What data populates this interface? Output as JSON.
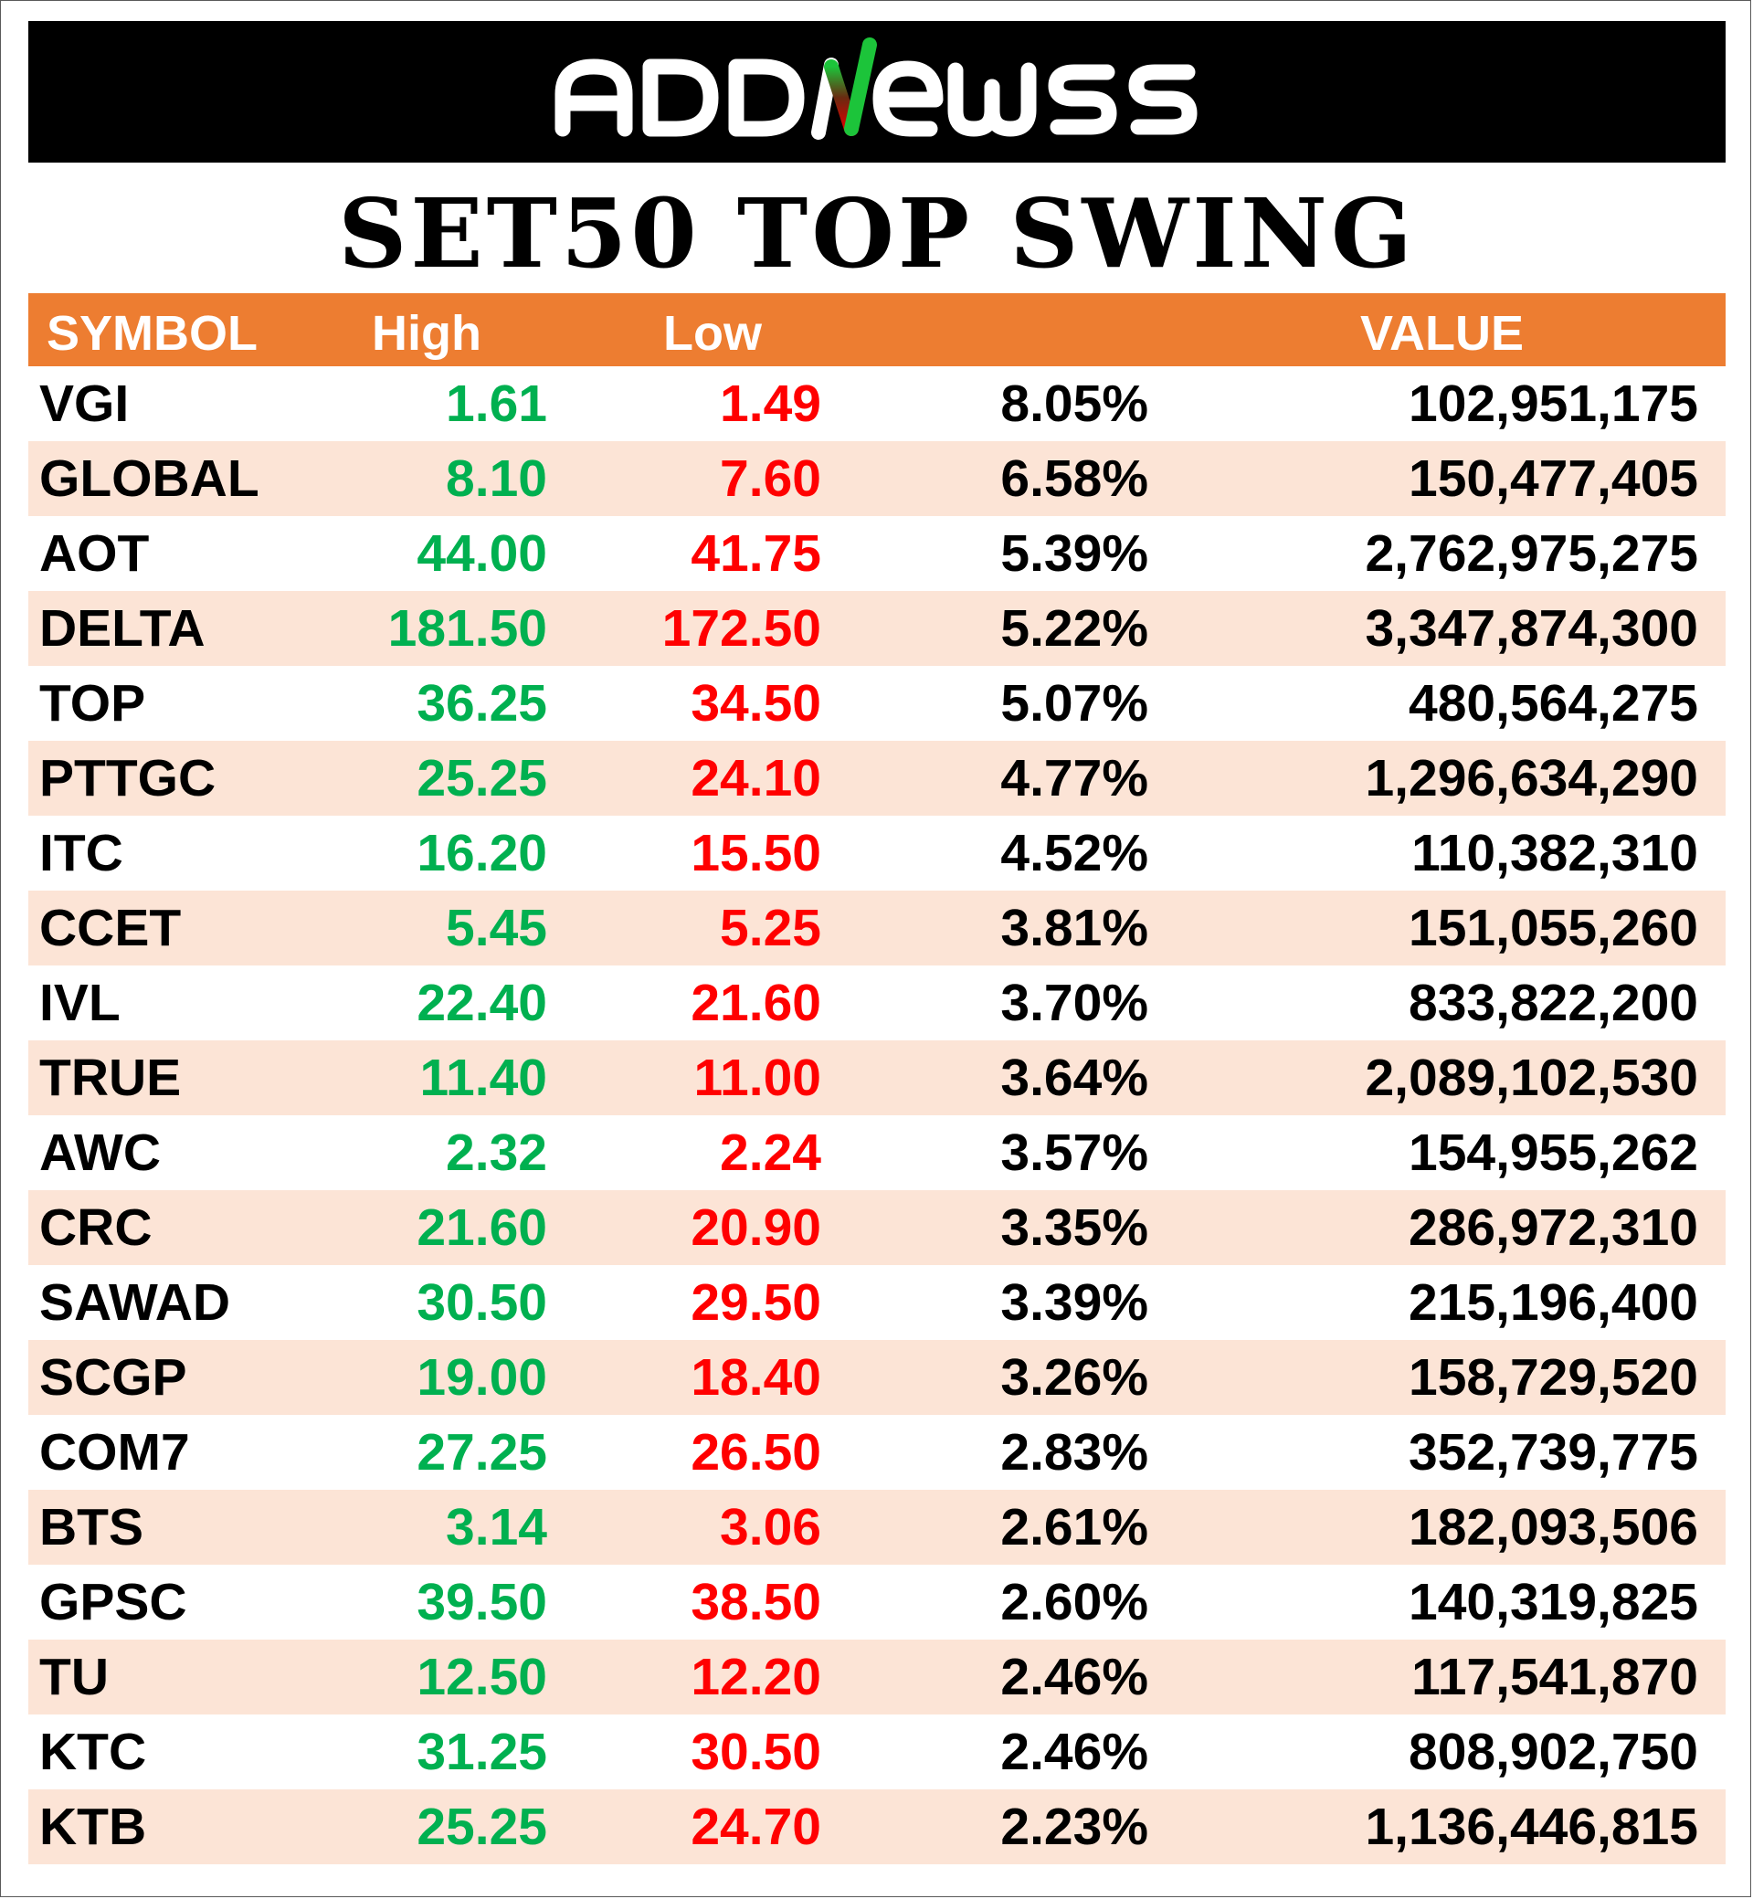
{
  "brand": {
    "logo_text": "ADDNewss",
    "colors": {
      "bar": "#000000",
      "text": "#ffffff",
      "accent_red": "#e00000",
      "accent_green": "#1cc43a"
    }
  },
  "title": "SET50 TOP SWING",
  "table": {
    "headers": {
      "symbol": "SYMBOL",
      "high": "High",
      "low": "Low",
      "pct": "",
      "value": "VALUE"
    },
    "header_color": "#ed7d31",
    "stripe_color": "#fce4d6",
    "high_color": "#00b050",
    "low_color": "#ff0000",
    "rows": [
      {
        "symbol": "VGI",
        "high": "1.61",
        "low": "1.49",
        "pct": "8.05%",
        "value": "102,951,175"
      },
      {
        "symbol": "GLOBAL",
        "high": "8.10",
        "low": "7.60",
        "pct": "6.58%",
        "value": "150,477,405"
      },
      {
        "symbol": "AOT",
        "high": "44.00",
        "low": "41.75",
        "pct": "5.39%",
        "value": "2,762,975,275"
      },
      {
        "symbol": "DELTA",
        "high": "181.50",
        "low": "172.50",
        "pct": "5.22%",
        "value": "3,347,874,300"
      },
      {
        "symbol": "TOP",
        "high": "36.25",
        "low": "34.50",
        "pct": "5.07%",
        "value": "480,564,275"
      },
      {
        "symbol": "PTTGC",
        "high": "25.25",
        "low": "24.10",
        "pct": "4.77%",
        "value": "1,296,634,290"
      },
      {
        "symbol": "ITC",
        "high": "16.20",
        "low": "15.50",
        "pct": "4.52%",
        "value": "110,382,310"
      },
      {
        "symbol": "CCET",
        "high": "5.45",
        "low": "5.25",
        "pct": "3.81%",
        "value": "151,055,260"
      },
      {
        "symbol": "IVL",
        "high": "22.40",
        "low": "21.60",
        "pct": "3.70%",
        "value": "833,822,200"
      },
      {
        "symbol": "TRUE",
        "high": "11.40",
        "low": "11.00",
        "pct": "3.64%",
        "value": "2,089,102,530"
      },
      {
        "symbol": "AWC",
        "high": "2.32",
        "low": "2.24",
        "pct": "3.57%",
        "value": "154,955,262"
      },
      {
        "symbol": "CRC",
        "high": "21.60",
        "low": "20.90",
        "pct": "3.35%",
        "value": "286,972,310"
      },
      {
        "symbol": "SAWAD",
        "high": "30.50",
        "low": "29.50",
        "pct": "3.39%",
        "value": "215,196,400"
      },
      {
        "symbol": "SCGP",
        "high": "19.00",
        "low": "18.40",
        "pct": "3.26%",
        "value": "158,729,520"
      },
      {
        "symbol": "COM7",
        "high": "27.25",
        "low": "26.50",
        "pct": "2.83%",
        "value": "352,739,775"
      },
      {
        "symbol": "BTS",
        "high": "3.14",
        "low": "3.06",
        "pct": "2.61%",
        "value": "182,093,506"
      },
      {
        "symbol": "GPSC",
        "high": "39.50",
        "low": "38.50",
        "pct": "2.60%",
        "value": "140,319,825"
      },
      {
        "symbol": "TU",
        "high": "12.50",
        "low": "12.20",
        "pct": "2.46%",
        "value": "117,541,870"
      },
      {
        "symbol": "KTC",
        "high": "31.25",
        "low": "30.50",
        "pct": "2.46%",
        "value": "808,902,750"
      },
      {
        "symbol": "KTB",
        "high": "25.25",
        "low": "24.70",
        "pct": "2.23%",
        "value": "1,136,446,815"
      }
    ]
  }
}
